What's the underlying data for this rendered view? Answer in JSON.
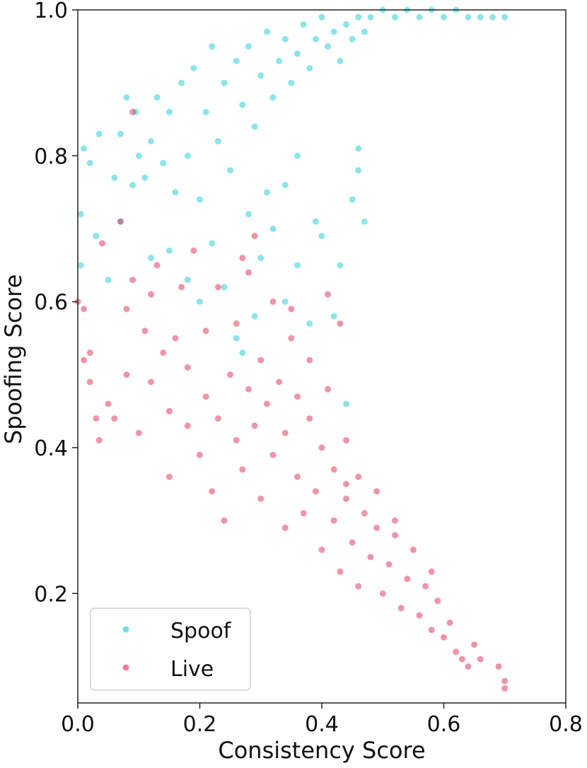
{
  "chart_data": {
    "type": "scatter",
    "xlabel": "Consistency Score",
    "ylabel": "Spoofing Score",
    "xlim": [
      0.0,
      0.8
    ],
    "ylim": [
      0.05,
      1.0
    ],
    "x_ticks": [
      "0.0",
      "0.2",
      "0.4",
      "0.6",
      "0.8"
    ],
    "y_ticks": [
      "0.2",
      "0.4",
      "0.6",
      "0.8",
      "1.0"
    ],
    "grid": false,
    "legend_position": "bottom-left",
    "series": [
      {
        "name": "Spoof",
        "color": "#00c5cd",
        "alpha": 0.45,
        "points": [
          [
            0.005,
            0.72
          ],
          [
            0.005,
            0.65
          ],
          [
            0.01,
            0.81
          ],
          [
            0.02,
            0.79
          ],
          [
            0.03,
            0.69
          ],
          [
            0.035,
            0.83
          ],
          [
            0.05,
            0.63
          ],
          [
            0.06,
            0.77
          ],
          [
            0.07,
            0.83
          ],
          [
            0.07,
            0.71
          ],
          [
            0.08,
            0.88
          ],
          [
            0.09,
            0.76
          ],
          [
            0.095,
            0.86
          ],
          [
            0.1,
            0.8
          ],
          [
            0.11,
            0.77
          ],
          [
            0.12,
            0.82
          ],
          [
            0.12,
            0.66
          ],
          [
            0.13,
            0.88
          ],
          [
            0.14,
            0.79
          ],
          [
            0.15,
            0.86
          ],
          [
            0.16,
            0.75
          ],
          [
            0.17,
            0.9
          ],
          [
            0.18,
            0.8
          ],
          [
            0.19,
            0.92
          ],
          [
            0.2,
            0.74
          ],
          [
            0.21,
            0.86
          ],
          [
            0.22,
            0.95
          ],
          [
            0.23,
            0.82
          ],
          [
            0.24,
            0.9
          ],
          [
            0.25,
            0.78
          ],
          [
            0.26,
            0.93
          ],
          [
            0.27,
            0.87
          ],
          [
            0.28,
            0.95
          ],
          [
            0.29,
            0.84
          ],
          [
            0.3,
            0.91
          ],
          [
            0.31,
            0.97
          ],
          [
            0.32,
            0.88
          ],
          [
            0.33,
            0.93
          ],
          [
            0.34,
            0.96
          ],
          [
            0.35,
            0.9
          ],
          [
            0.36,
            0.94
          ],
          [
            0.37,
            0.98
          ],
          [
            0.38,
            0.92
          ],
          [
            0.39,
            0.96
          ],
          [
            0.4,
            0.99
          ],
          [
            0.41,
            0.95
          ],
          [
            0.42,
            0.97
          ],
          [
            0.43,
            0.93
          ],
          [
            0.44,
            0.98
          ],
          [
            0.45,
            0.96
          ],
          [
            0.46,
            0.99
          ],
          [
            0.47,
            0.97
          ],
          [
            0.48,
            0.99
          ],
          [
            0.5,
            1.0
          ],
          [
            0.52,
            0.99
          ],
          [
            0.54,
            1.0
          ],
          [
            0.56,
            0.99
          ],
          [
            0.58,
            1.0
          ],
          [
            0.6,
            0.99
          ],
          [
            0.62,
            1.0
          ],
          [
            0.64,
            0.99
          ],
          [
            0.66,
            0.99
          ],
          [
            0.68,
            0.99
          ],
          [
            0.7,
            0.99
          ],
          [
            0.15,
            0.67
          ],
          [
            0.18,
            0.63
          ],
          [
            0.2,
            0.6
          ],
          [
            0.22,
            0.68
          ],
          [
            0.24,
            0.62
          ],
          [
            0.26,
            0.55
          ],
          [
            0.27,
            0.53
          ],
          [
            0.29,
            0.58
          ],
          [
            0.3,
            0.66
          ],
          [
            0.32,
            0.7
          ],
          [
            0.34,
            0.6
          ],
          [
            0.36,
            0.65
          ],
          [
            0.38,
            0.57
          ],
          [
            0.39,
            0.71
          ],
          [
            0.4,
            0.69
          ],
          [
            0.42,
            0.58
          ],
          [
            0.43,
            0.65
          ],
          [
            0.44,
            0.46
          ],
          [
            0.46,
            0.78
          ],
          [
            0.46,
            0.81
          ],
          [
            0.47,
            0.71
          ],
          [
            0.45,
            0.74
          ],
          [
            0.34,
            0.76
          ],
          [
            0.36,
            0.8
          ],
          [
            0.31,
            0.75
          ],
          [
            0.28,
            0.72
          ]
        ]
      },
      {
        "name": "Live",
        "color": "#dc143c",
        "alpha": 0.45,
        "points": [
          [
            0.0,
            0.6
          ],
          [
            0.01,
            0.59
          ],
          [
            0.01,
            0.52
          ],
          [
            0.02,
            0.49
          ],
          [
            0.02,
            0.53
          ],
          [
            0.03,
            0.44
          ],
          [
            0.035,
            0.41
          ],
          [
            0.04,
            0.68
          ],
          [
            0.05,
            0.46
          ],
          [
            0.06,
            0.44
          ],
          [
            0.07,
            0.71
          ],
          [
            0.08,
            0.59
          ],
          [
            0.08,
            0.5
          ],
          [
            0.09,
            0.63
          ],
          [
            0.09,
            0.86
          ],
          [
            0.1,
            0.42
          ],
          [
            0.11,
            0.56
          ],
          [
            0.12,
            0.61
          ],
          [
            0.12,
            0.49
          ],
          [
            0.13,
            0.65
          ],
          [
            0.14,
            0.53
          ],
          [
            0.15,
            0.45
          ],
          [
            0.15,
            0.36
          ],
          [
            0.16,
            0.55
          ],
          [
            0.17,
            0.62
          ],
          [
            0.18,
            0.43
          ],
          [
            0.18,
            0.51
          ],
          [
            0.19,
            0.67
          ],
          [
            0.2,
            0.39
          ],
          [
            0.21,
            0.47
          ],
          [
            0.21,
            0.56
          ],
          [
            0.22,
            0.34
          ],
          [
            0.23,
            0.44
          ],
          [
            0.23,
            0.62
          ],
          [
            0.24,
            0.3
          ],
          [
            0.25,
            0.5
          ],
          [
            0.26,
            0.41
          ],
          [
            0.26,
            0.57
          ],
          [
            0.27,
            0.37
          ],
          [
            0.28,
            0.48
          ],
          [
            0.28,
            0.64
          ],
          [
            0.29,
            0.43
          ],
          [
            0.3,
            0.33
          ],
          [
            0.3,
            0.52
          ],
          [
            0.31,
            0.46
          ],
          [
            0.32,
            0.39
          ],
          [
            0.32,
            0.6
          ],
          [
            0.33,
            0.49
          ],
          [
            0.34,
            0.29
          ],
          [
            0.34,
            0.42
          ],
          [
            0.35,
            0.55
          ],
          [
            0.36,
            0.36
          ],
          [
            0.36,
            0.47
          ],
          [
            0.37,
            0.31
          ],
          [
            0.38,
            0.44
          ],
          [
            0.38,
            0.52
          ],
          [
            0.39,
            0.34
          ],
          [
            0.4,
            0.4
          ],
          [
            0.4,
            0.26
          ],
          [
            0.41,
            0.48
          ],
          [
            0.42,
            0.3
          ],
          [
            0.42,
            0.37
          ],
          [
            0.43,
            0.23
          ],
          [
            0.44,
            0.33
          ],
          [
            0.44,
            0.41
          ],
          [
            0.45,
            0.27
          ],
          [
            0.46,
            0.36
          ],
          [
            0.46,
            0.21
          ],
          [
            0.47,
            0.31
          ],
          [
            0.48,
            0.25
          ],
          [
            0.49,
            0.29
          ],
          [
            0.5,
            0.2
          ],
          [
            0.51,
            0.24
          ],
          [
            0.52,
            0.28
          ],
          [
            0.53,
            0.18
          ],
          [
            0.54,
            0.22
          ],
          [
            0.55,
            0.26
          ],
          [
            0.56,
            0.17
          ],
          [
            0.57,
            0.21
          ],
          [
            0.58,
            0.15
          ],
          [
            0.59,
            0.19
          ],
          [
            0.6,
            0.14
          ],
          [
            0.61,
            0.16
          ],
          [
            0.62,
            0.12
          ],
          [
            0.63,
            0.11
          ],
          [
            0.64,
            0.1
          ],
          [
            0.65,
            0.13
          ],
          [
            0.66,
            0.11
          ],
          [
            0.69,
            0.1
          ],
          [
            0.7,
            0.08
          ],
          [
            0.7,
            0.07
          ],
          [
            0.35,
            0.59
          ],
          [
            0.29,
            0.69
          ],
          [
            0.27,
            0.66
          ],
          [
            0.41,
            0.61
          ],
          [
            0.43,
            0.57
          ],
          [
            0.44,
            0.35
          ],
          [
            0.49,
            0.34
          ],
          [
            0.52,
            0.3
          ],
          [
            0.58,
            0.23
          ]
        ]
      }
    ]
  },
  "legend": {
    "items": [
      {
        "label": "Spoof",
        "color": "#00c5cd"
      },
      {
        "label": "Live",
        "color": "#dc143c"
      }
    ]
  }
}
